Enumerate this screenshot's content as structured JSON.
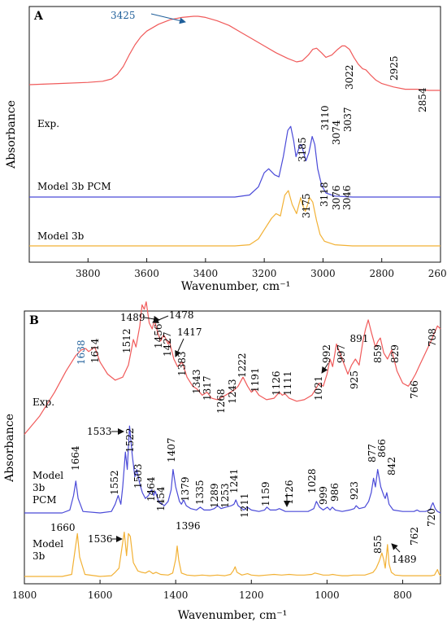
{
  "chart_data": [
    {
      "type": "line",
      "panel_label": "A",
      "xlabel": "Wavenumber, cm⁻¹",
      "ylabel": "Absorbance",
      "xlim": [
        4000,
        2600
      ],
      "xticks": [
        3800,
        3600,
        3400,
        3200,
        3000,
        2800,
        2600
      ],
      "grid": false,
      "series": [
        {
          "name": "Exp.",
          "color": "#f05a5a",
          "x": [
            4000,
            3900,
            3800,
            3750,
            3720,
            3700,
            3680,
            3660,
            3640,
            3620,
            3600,
            3560,
            3520,
            3480,
            3440,
            3425,
            3400,
            3360,
            3320,
            3280,
            3240,
            3200,
            3160,
            3120,
            3090,
            3070,
            3050,
            3035,
            3022,
            3005,
            2990,
            2970,
            2950,
            2935,
            2925,
            2910,
            2895,
            2880,
            2865,
            2854,
            2840,
            2820,
            2800,
            2760,
            2720,
            2680,
            2640,
            2600
          ],
          "y": [
            0.4,
            0.41,
            0.42,
            0.43,
            0.45,
            0.49,
            0.56,
            0.66,
            0.75,
            0.82,
            0.87,
            0.93,
            0.97,
            0.99,
            1.0,
            1.0,
            0.99,
            0.96,
            0.92,
            0.86,
            0.8,
            0.74,
            0.68,
            0.63,
            0.6,
            0.61,
            0.66,
            0.71,
            0.72,
            0.68,
            0.64,
            0.66,
            0.71,
            0.74,
            0.74,
            0.71,
            0.64,
            0.58,
            0.54,
            0.53,
            0.49,
            0.44,
            0.41,
            0.38,
            0.36,
            0.36,
            0.35,
            0.35
          ]
        },
        {
          "name": "Model 3b PCM",
          "color": "#4a4ad8",
          "x": [
            4000,
            3300,
            3250,
            3220,
            3200,
            3185,
            3165,
            3150,
            3135,
            3120,
            3110,
            3100,
            3092,
            3080,
            3074,
            3068,
            3058,
            3048,
            3037,
            3028,
            3018,
            3005,
            2990,
            2960,
            2900,
            2600
          ],
          "y": [
            0,
            0,
            0.01,
            0.05,
            0.12,
            0.14,
            0.11,
            0.1,
            0.2,
            0.33,
            0.35,
            0.28,
            0.2,
            0.25,
            0.26,
            0.23,
            0.18,
            0.22,
            0.3,
            0.26,
            0.14,
            0.06,
            0.02,
            0.005,
            0,
            0
          ]
        },
        {
          "name": "Model 3b",
          "color": "#f2b135",
          "x": [
            4000,
            3300,
            3250,
            3220,
            3200,
            3175,
            3160,
            3145,
            3130,
            3118,
            3105,
            3090,
            3082,
            3076,
            3070,
            3060,
            3052,
            3046,
            3035,
            3022,
            3010,
            2995,
            2960,
            2900,
            2600
          ],
          "y": [
            0,
            0,
            0.005,
            0.03,
            0.07,
            0.12,
            0.14,
            0.13,
            0.22,
            0.24,
            0.18,
            0.14,
            0.18,
            0.21,
            0.18,
            0.15,
            0.18,
            0.21,
            0.19,
            0.11,
            0.05,
            0.02,
            0.005,
            0,
            0
          ]
        }
      ],
      "series_labels": [
        "Exp.",
        "Model 3b PCM",
        "Model 3b"
      ],
      "peak_labels": {
        "exp": [
          "3022",
          "2925",
          "2854"
        ],
        "exp_arrow": "3425",
        "pcm": [
          "3185",
          "3110",
          "3074",
          "3037"
        ],
        "gas": [
          "3175",
          "3118",
          "3076",
          "3046"
        ]
      }
    },
    {
      "type": "line",
      "panel_label": "B",
      "xlabel": "Wavenumber, cm⁻¹",
      "ylabel": "Absorbance",
      "xlim": [
        1800,
        700
      ],
      "xticks": [
        1800,
        1600,
        1400,
        1200,
        1000,
        800
      ],
      "grid": false,
      "series": [
        {
          "name": "Exp.",
          "color": "#f05a5a",
          "x": [
            1800,
            1760,
            1720,
            1690,
            1665,
            1650,
            1638,
            1630,
            1614,
            1600,
            1580,
            1560,
            1540,
            1525,
            1512,
            1505,
            1495,
            1489,
            1483,
            1478,
            1470,
            1462,
            1456,
            1448,
            1440,
            1432,
            1427,
            1420,
            1417,
            1405,
            1395,
            1383,
            1370,
            1355,
            1343,
            1330,
            1317,
            1305,
            1290,
            1275,
            1268,
            1255,
            1243,
            1235,
            1222,
            1210,
            1200,
            1191,
            1180,
            1160,
            1140,
            1126,
            1118,
            1111,
            1100,
            1080,
            1060,
            1040,
            1030,
            1021,
            1010,
            1000,
            992,
            985,
            975,
            960,
            945,
            935,
            925,
            915,
            905,
            898,
            891,
            883,
            872,
            865,
            859,
            850,
            840,
            829,
            815,
            800,
            785,
            775,
            766,
            755,
            740,
            725,
            715,
            708,
            700
          ],
          "y": [
            0.1,
            0.22,
            0.38,
            0.52,
            0.62,
            0.66,
            0.67,
            0.65,
            0.68,
            0.58,
            0.5,
            0.46,
            0.48,
            0.56,
            0.73,
            0.68,
            0.82,
            0.96,
            0.93,
            0.98,
            0.84,
            0.8,
            0.86,
            0.78,
            0.72,
            0.76,
            0.74,
            0.7,
            0.72,
            0.6,
            0.55,
            0.58,
            0.48,
            0.42,
            0.4,
            0.36,
            0.38,
            0.34,
            0.33,
            0.35,
            0.36,
            0.38,
            0.4,
            0.42,
            0.48,
            0.42,
            0.38,
            0.4,
            0.36,
            0.33,
            0.34,
            0.38,
            0.36,
            0.37,
            0.34,
            0.32,
            0.33,
            0.36,
            0.4,
            0.44,
            0.42,
            0.5,
            0.6,
            0.55,
            0.7,
            0.6,
            0.5,
            0.56,
            0.6,
            0.56,
            0.72,
            0.8,
            0.86,
            0.78,
            0.68,
            0.72,
            0.74,
            0.64,
            0.6,
            0.66,
            0.52,
            0.44,
            0.42,
            0.46,
            0.5,
            0.56,
            0.64,
            0.72,
            0.78,
            0.82,
            0.8
          ]
        },
        {
          "name": "Model 3b PCM",
          "color": "#4a4ad8",
          "x": [
            1800,
            1700,
            1680,
            1670,
            1664,
            1658,
            1645,
            1600,
            1570,
            1560,
            1552,
            1545,
            1540,
            1533,
            1528,
            1522,
            1515,
            1508,
            1503,
            1495,
            1488,
            1480,
            1472,
            1464,
            1458,
            1454,
            1445,
            1430,
            1420,
            1412,
            1407,
            1400,
            1390,
            1385,
            1379,
            1372,
            1360,
            1345,
            1335,
            1325,
            1310,
            1298,
            1289,
            1280,
            1268,
            1253,
            1246,
            1241,
            1235,
            1220,
            1211,
            1200,
            1180,
            1165,
            1159,
            1150,
            1135,
            1126,
            1110,
            1080,
            1050,
            1035,
            1028,
            1020,
            1010,
            999,
            992,
            986,
            978,
            960,
            940,
            928,
            923,
            915,
            900,
            890,
            883,
            877,
            872,
            866,
            858,
            850,
            846,
            842,
            836,
            825,
            800,
            780,
            770,
            762,
            755,
            740,
            728,
            724,
            720,
            714,
            708,
            700
          ],
          "y": [
            0,
            0,
            0.02,
            0.12,
            0.22,
            0.1,
            0.01,
            0,
            0.01,
            0.06,
            0.12,
            0.06,
            0.18,
            0.42,
            0.3,
            0.6,
            0.4,
            0.25,
            0.3,
            0.2,
            0.14,
            0.1,
            0.12,
            0.16,
            0.12,
            0.15,
            0.08,
            0.05,
            0.08,
            0.16,
            0.3,
            0.18,
            0.08,
            0.06,
            0.09,
            0.05,
            0.03,
            0.02,
            0.04,
            0.02,
            0.02,
            0.03,
            0.05,
            0.03,
            0.04,
            0.05,
            0.06,
            0.09,
            0.05,
            0.02,
            0.04,
            0.02,
            0.01,
            0.02,
            0.04,
            0.02,
            0.02,
            0.03,
            0.01,
            0.01,
            0.01,
            0.03,
            0.08,
            0.04,
            0.02,
            0.04,
            0.02,
            0.04,
            0.02,
            0.01,
            0.02,
            0.03,
            0.05,
            0.03,
            0.04,
            0.08,
            0.14,
            0.24,
            0.18,
            0.3,
            0.18,
            0.12,
            0.1,
            0.14,
            0.06,
            0.02,
            0.01,
            0.01,
            0.01,
            0.02,
            0.01,
            0.01,
            0.02,
            0.05,
            0.07,
            0.03,
            0.01,
            0
          ]
        },
        {
          "name": "Model 3b",
          "color": "#f2b135",
          "x": [
            1800,
            1700,
            1675,
            1668,
            1660,
            1654,
            1640,
            1600,
            1570,
            1560,
            1550,
            1542,
            1536,
            1530,
            1525,
            1520,
            1512,
            1500,
            1490,
            1480,
            1470,
            1460,
            1452,
            1440,
            1420,
            1408,
            1400,
            1396,
            1392,
            1385,
            1370,
            1350,
            1330,
            1310,
            1290,
            1270,
            1255,
            1248,
            1243,
            1238,
            1225,
            1210,
            1200,
            1180,
            1160,
            1140,
            1120,
            1100,
            1080,
            1060,
            1040,
            1032,
            1025,
            1010,
            995,
            985,
            975,
            960,
            945,
            930,
            915,
            900,
            888,
            878,
            870,
            862,
            855,
            850,
            846,
            840,
            836,
            830,
            820,
            800,
            780,
            760,
            740,
            725,
            716,
            712,
            708,
            704,
            700
          ],
          "y": [
            0,
            0,
            0.03,
            0.3,
            0.62,
            0.28,
            0.03,
            0,
            0.01,
            0.06,
            0.12,
            0.42,
            0.64,
            0.3,
            0.62,
            0.58,
            0.2,
            0.08,
            0.06,
            0.05,
            0.08,
            0.04,
            0.06,
            0.03,
            0.02,
            0.05,
            0.25,
            0.44,
            0.24,
            0.05,
            0.02,
            0.01,
            0.02,
            0.01,
            0.02,
            0.01,
            0.03,
            0.08,
            0.14,
            0.06,
            0.02,
            0.04,
            0.02,
            0.01,
            0.02,
            0.03,
            0.02,
            0.03,
            0.02,
            0.02,
            0.03,
            0.05,
            0.04,
            0.02,
            0.02,
            0.03,
            0.02,
            0.01,
            0.01,
            0.02,
            0.02,
            0.02,
            0.04,
            0.06,
            0.12,
            0.22,
            0.34,
            0.24,
            0.12,
            0.46,
            0.18,
            0.06,
            0.02,
            0.01,
            0.01,
            0.01,
            0.01,
            0.01,
            0.02,
            0.06,
            0.1,
            0.04,
            0.01
          ]
        }
      ],
      "series_labels": [
        [
          "Exp."
        ],
        [
          "Model",
          "3b",
          "PCM"
        ],
        [
          "Model",
          "3b"
        ]
      ],
      "peak_labels": {
        "exp": [
          "1614",
          "1512",
          "1456",
          "1427",
          "1383",
          "1343",
          "1317",
          "1268",
          "1243",
          "1222",
          "1191",
          "1126",
          "1111",
          "1021",
          "997",
          "925",
          "891",
          "859",
          "829",
          "766",
          "708"
        ],
        "exp_blue": "1638",
        "exp_arrows": [
          "1489",
          "1478",
          "1417",
          "992"
        ],
        "pcm": [
          "1664",
          "1552",
          "1522",
          "1503",
          "1464",
          "1454",
          "1407",
          "1379",
          "1335",
          "1289",
          "1253",
          "1241",
          "1211",
          "1159",
          "1028",
          "999",
          "986",
          "923",
          "877",
          "866",
          "842",
          "762",
          "720"
        ],
        "pcm_arrows": [
          "1533",
          "1126"
        ],
        "gas": [
          "1660",
          "1396",
          "855"
        ],
        "gas_arrows": [
          "1536",
          "1489"
        ]
      }
    }
  ]
}
